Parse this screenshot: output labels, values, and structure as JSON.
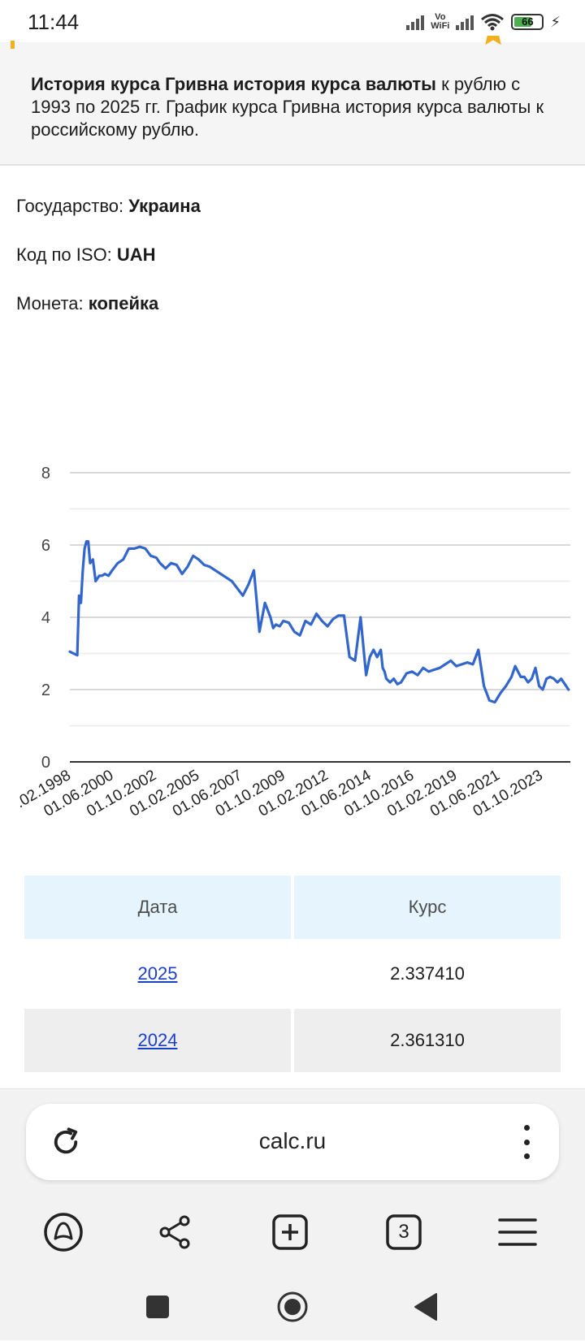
{
  "status_bar": {
    "time": "11:44",
    "network_label_top": "Vo",
    "network_label_bottom": "WiFi",
    "battery_percent": "66",
    "battery_level": 0.66
  },
  "intro": {
    "title_bold": "История курса Гривна история курса валюты",
    "text": " к рублю с 1993 по 2025 гг. График курса Гривна история курса валюты к российскому рублю."
  },
  "info": {
    "country_label": "Государство: ",
    "country_value": "Украина",
    "iso_label": "Код по ISO: ",
    "iso_value": "UAH",
    "coin_label": "Монета: ",
    "coin_value": "копейка"
  },
  "chart_data": {
    "type": "line",
    "y_ticks": [
      "0",
      "2",
      "4",
      "6",
      "8"
    ],
    "ylim": [
      0,
      8
    ],
    "x_tick_labels": [
      ".02.1998",
      "01.06.2000",
      "01.10.2002",
      "01.02.2005",
      "01.06.2007",
      "01.10.2009",
      "01.02.2012",
      "01.06.2014",
      "01.10.2016",
      "01.02.2019",
      "01.06.2021",
      "01.10.2023"
    ],
    "x_tick_positions": [
      1998.1,
      2000.42,
      2002.75,
      2005.09,
      2007.42,
      2009.75,
      2012.09,
      2014.42,
      2016.75,
      2019.09,
      2021.42,
      2023.75
    ],
    "xlim": [
      1998.0,
      2025.2
    ],
    "grid": true,
    "legend": "none",
    "line_color": "#3366cc",
    "series": [
      {
        "x": [
          1998.0,
          1998.2,
          1998.4,
          1998.5,
          1998.6,
          1998.7,
          1998.8,
          1998.9,
          1999.0,
          1999.1,
          1999.25,
          1999.4,
          1999.6,
          1999.75,
          1999.9,
          2000.1,
          2000.3,
          2000.6,
          2000.9,
          2001.2,
          2001.5,
          2001.8,
          2002.1,
          2002.4,
          2002.7,
          2002.9,
          2003.2,
          2003.5,
          2003.8,
          2004.1,
          2004.4,
          2004.7,
          2005.0,
          2005.3,
          2005.6,
          2005.9,
          2006.2,
          2006.5,
          2006.8,
          2007.1,
          2007.4,
          2007.7,
          2008.0,
          2008.3,
          2008.6,
          2008.9,
          2009.05,
          2009.2,
          2009.4,
          2009.6,
          2009.9,
          2010.2,
          2010.5,
          2010.8,
          2011.1,
          2011.4,
          2011.7,
          2012.0,
          2012.3,
          2012.6,
          2012.9,
          2013.2,
          2013.5,
          2013.8,
          2014.1,
          2014.3,
          2014.5,
          2014.7,
          2014.9,
          2015.0,
          2015.1,
          2015.2,
          2015.4,
          2015.6,
          2015.8,
          2016.0,
          2016.3,
          2016.6,
          2016.9,
          2017.2,
          2017.5,
          2017.8,
          2018.1,
          2018.4,
          2018.7,
          2019.0,
          2019.3,
          2019.6,
          2019.9,
          2020.2,
          2020.5,
          2020.8,
          2021.1,
          2021.4,
          2021.7,
          2022.0,
          2022.1,
          2022.2,
          2022.35,
          2022.5,
          2022.7,
          2022.9,
          2023.1,
          2023.3,
          2023.5,
          2023.7,
          2023.9,
          2024.1,
          2024.3,
          2024.5,
          2024.7,
          2024.9,
          2025.1
        ],
        "y": [
          3.05,
          3.0,
          2.95,
          4.6,
          4.4,
          5.3,
          5.9,
          6.1,
          6.1,
          5.5,
          5.6,
          5.0,
          5.15,
          5.15,
          5.2,
          5.15,
          5.3,
          5.5,
          5.6,
          5.9,
          5.9,
          5.95,
          5.9,
          5.7,
          5.65,
          5.5,
          5.35,
          5.5,
          5.45,
          5.2,
          5.4,
          5.7,
          5.6,
          5.45,
          5.4,
          5.3,
          5.2,
          5.1,
          5.0,
          4.8,
          4.6,
          4.9,
          5.3,
          3.6,
          4.4,
          4.0,
          3.7,
          3.8,
          3.75,
          3.9,
          3.85,
          3.6,
          3.5,
          3.9,
          3.8,
          4.1,
          3.9,
          3.75,
          3.95,
          4.05,
          4.05,
          2.9,
          2.8,
          4.0,
          2.4,
          2.9,
          3.1,
          2.9,
          3.1,
          2.6,
          2.5,
          2.3,
          2.2,
          2.3,
          2.15,
          2.2,
          2.45,
          2.5,
          2.4,
          2.6,
          2.5,
          2.55,
          2.6,
          2.7,
          2.8,
          2.65,
          2.7,
          2.75,
          2.7,
          3.1,
          2.1,
          1.7,
          1.65,
          1.9,
          2.1,
          2.35,
          2.5,
          2.65,
          2.5,
          2.35,
          2.35,
          2.2,
          2.3,
          2.6,
          2.1,
          2.0,
          2.3,
          2.35,
          2.3,
          2.2,
          2.3,
          2.15,
          2.0
        ]
      }
    ]
  },
  "table": {
    "headers": [
      "Дата",
      "Курс"
    ],
    "rows": [
      {
        "date": "2025",
        "rate": "2.337410"
      },
      {
        "date": "2024",
        "rate": "2.361310"
      }
    ]
  },
  "browser": {
    "url": "calc.ru",
    "tab_count": "3"
  }
}
